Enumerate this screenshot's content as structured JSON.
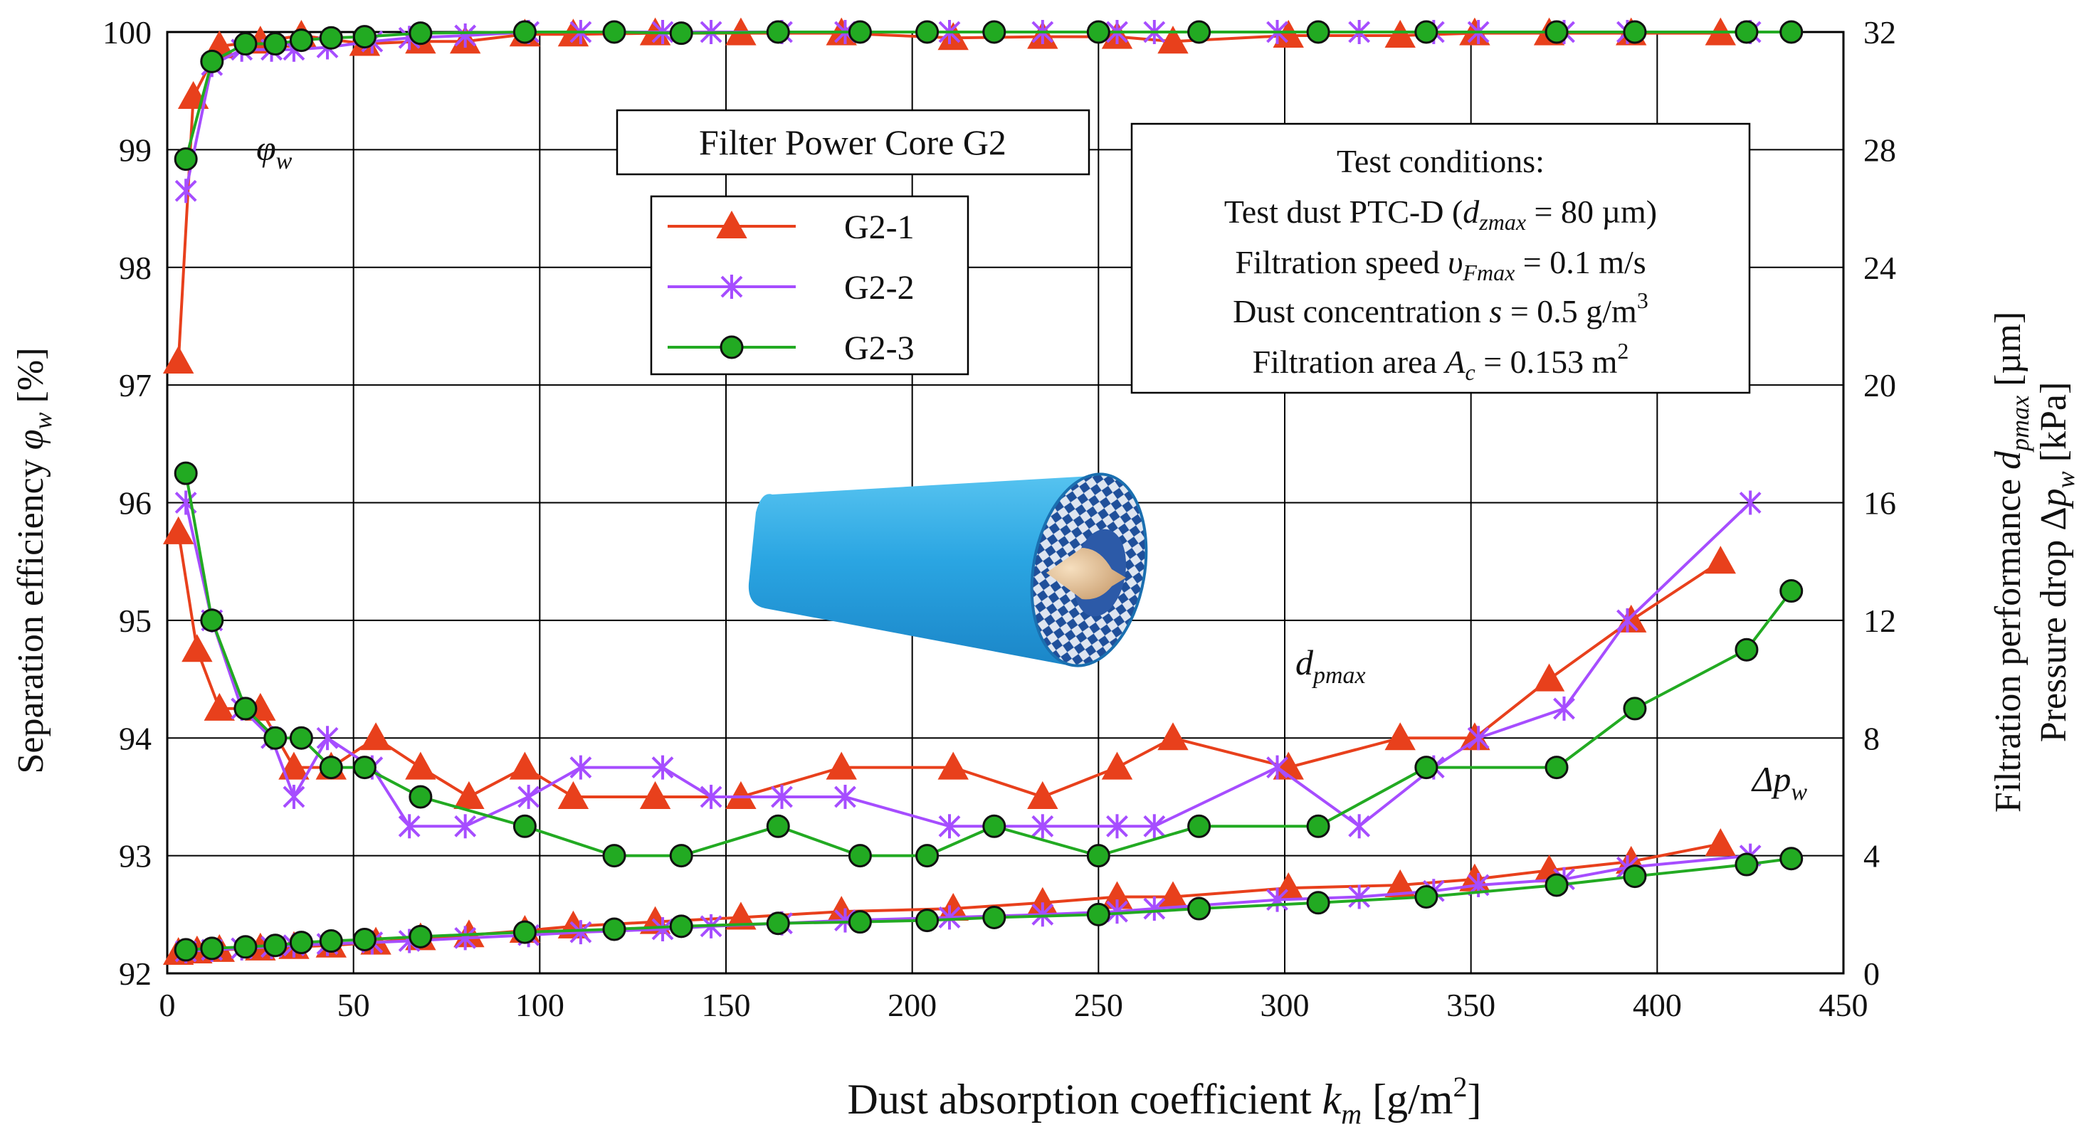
{
  "chart_data": {
    "type": "line",
    "title": "Filter Power Core G2",
    "xlabel": "Dust absorption coefficient",
    "xlabel_var": "k",
    "xlabel_sub": "m",
    "xlabel_unit_open": " [g/m",
    "xlabel_unit_sup": "2",
    "xlabel_unit_close": "]",
    "ylabel_left": "Separation efficiency",
    "ylabel_left_var": "φ",
    "ylabel_left_sub": "w",
    "ylabel_left_unit": " [%]",
    "ylabel_right_1": "Filtration performance",
    "ylabel_right_1_var": "d",
    "ylabel_right_1_sub": "pmax",
    "ylabel_right_1_unit": " [µm]",
    "ylabel_right_2": "Pressure drop Δ",
    "ylabel_right_2_var": "p",
    "ylabel_right_2_sub": "w",
    "ylabel_right_2_unit": " [kPa]",
    "xlim": [
      0,
      450
    ],
    "ylim_left": [
      92,
      100
    ],
    "ylim_right": [
      0,
      32
    ],
    "x_ticks": [
      "0",
      "50",
      "100",
      "150",
      "200",
      "250",
      "300",
      "350",
      "400",
      "450"
    ],
    "y_left_ticks": [
      "92",
      "93",
      "94",
      "95",
      "96",
      "97",
      "98",
      "99",
      "100"
    ],
    "y_right_ticks": [
      "0",
      "4",
      "8",
      "12",
      "16",
      "20",
      "24",
      "28",
      "32"
    ],
    "grid": true,
    "annotations": {
      "phi": {
        "main": "φ",
        "sub": "w"
      },
      "dpmax": {
        "main": "d",
        "sub": "pmax"
      },
      "dp": {
        "main": "Δp",
        "sub": "w"
      }
    },
    "legend": [
      {
        "name": "G2-1",
        "color": "#e8401c",
        "marker": "triangle"
      },
      {
        "name": "G2-2",
        "color": "#a64dff",
        "marker": "cross"
      },
      {
        "name": "G2-3",
        "color": "#22aa22",
        "marker": "circle"
      }
    ],
    "test_conditions": {
      "heading": "Test conditions:",
      "dust_prefix": "Test dust PTC-D (",
      "dust_var": "d",
      "dust_sub": "zmax",
      "dust_suffix": " = 80 µm)",
      "speed_prefix": "Filtration speed ",
      "speed_var": "υ",
      "speed_sub": "Fmax",
      "speed_suffix": " = 0.1 m/s",
      "conc_prefix": "Dust concentration ",
      "conc_var": "s",
      "conc_suffix": " = 0.5 g/m",
      "conc_sup": "3",
      "area_prefix": "Filtration area ",
      "area_var": "A",
      "area_sub": "c",
      "area_suffix": " = 0.153 m",
      "area_sup": "2"
    },
    "series": [
      {
        "name": "G2-1",
        "quantity": "efficiency",
        "axis": "left",
        "color": "#e8401c",
        "marker": "triangle",
        "x": [
          3,
          7,
          14,
          25,
          36,
          53,
          68,
          80,
          96,
          109,
          131,
          154,
          181,
          211,
          235,
          255,
          270,
          301,
          331,
          351,
          371,
          393,
          417
        ],
        "y": [
          97.2,
          99.45,
          99.88,
          99.92,
          99.97,
          99.9,
          99.92,
          99.92,
          99.98,
          99.98,
          99.99,
          99.99,
          99.99,
          99.95,
          99.96,
          99.96,
          99.92,
          99.97,
          99.97,
          99.99,
          99.99,
          99.99,
          99.99
        ]
      },
      {
        "name": "G2-2",
        "quantity": "efficiency",
        "axis": "left",
        "color": "#a64dff",
        "marker": "cross",
        "x": [
          5,
          12,
          20,
          28,
          34,
          43,
          55,
          65,
          80,
          97,
          111,
          133,
          146,
          165,
          182,
          210,
          235,
          255,
          265,
          298,
          320,
          340,
          352,
          375,
          392,
          425
        ],
        "y": [
          98.65,
          99.72,
          99.85,
          99.85,
          99.85,
          99.87,
          99.92,
          99.95,
          99.97,
          100,
          100,
          100,
          100,
          100,
          100,
          100,
          100,
          100,
          100,
          100,
          100,
          100,
          100,
          100,
          100,
          100
        ]
      },
      {
        "name": "G2-3",
        "quantity": "efficiency",
        "axis": "left",
        "color": "#22aa22",
        "marker": "circle",
        "x": [
          5,
          12,
          21,
          29,
          36,
          44,
          53,
          68,
          96,
          120,
          138,
          164,
          186,
          204,
          222,
          250,
          277,
          309,
          338,
          373,
          394,
          424,
          436
        ],
        "y": [
          98.92,
          99.75,
          99.9,
          99.9,
          99.93,
          99.95,
          99.96,
          99.99,
          100,
          100,
          99.99,
          100,
          100,
          100,
          100,
          100,
          100,
          100,
          100,
          100,
          100,
          100,
          100
        ]
      },
      {
        "name": "G2-1",
        "quantity": "dpmax",
        "axis": "right",
        "color": "#e8401c",
        "marker": "triangle",
        "x": [
          3,
          8,
          14,
          25,
          34,
          44,
          56,
          68,
          81,
          96,
          109,
          131,
          154,
          181,
          211,
          235,
          255,
          270,
          301,
          331,
          351,
          371,
          393,
          417
        ],
        "y": [
          15,
          11,
          9,
          9,
          7,
          7,
          8,
          7,
          6,
          7,
          6,
          6,
          6,
          7,
          7,
          6,
          7,
          8,
          7,
          8,
          8,
          10,
          12,
          14
        ]
      },
      {
        "name": "G2-2",
        "quantity": "dpmax",
        "axis": "right",
        "color": "#a64dff",
        "marker": "cross",
        "x": [
          5,
          12,
          20,
          28,
          34,
          43,
          55,
          65,
          80,
          97,
          111,
          133,
          146,
          165,
          182,
          210,
          235,
          255,
          265,
          298,
          320,
          340,
          352,
          375,
          392,
          425
        ],
        "y": [
          16,
          12,
          9,
          8,
          6,
          8,
          7,
          5,
          5,
          6,
          7,
          7,
          6,
          6,
          6,
          5,
          5,
          5,
          5,
          7,
          5,
          7,
          8,
          9,
          12,
          16
        ]
      },
      {
        "name": "G2-3",
        "quantity": "dpmax",
        "axis": "right",
        "color": "#22aa22",
        "marker": "circle",
        "x": [
          5,
          12,
          21,
          29,
          36,
          44,
          53,
          68,
          96,
          120,
          138,
          164,
          186,
          204,
          222,
          250,
          277,
          309,
          338,
          373,
          394,
          424,
          436
        ],
        "y": [
          17,
          12,
          9,
          8,
          8,
          7,
          7,
          6,
          5,
          4,
          4,
          5,
          4,
          4,
          5,
          4,
          5,
          5,
          7,
          7,
          9,
          11,
          13
        ]
      },
      {
        "name": "G2-1",
        "quantity": "pressure_drop",
        "axis": "right",
        "color": "#e8401c",
        "marker": "triangle",
        "x": [
          3,
          8,
          14,
          25,
          34,
          44,
          56,
          68,
          81,
          96,
          109,
          131,
          154,
          181,
          211,
          235,
          255,
          270,
          301,
          331,
          351,
          371,
          393,
          417
        ],
        "y": [
          0.7,
          0.75,
          0.8,
          0.85,
          0.9,
          0.95,
          1.05,
          1.2,
          1.3,
          1.45,
          1.6,
          1.75,
          1.9,
          2.1,
          2.2,
          2.4,
          2.6,
          2.6,
          2.9,
          3.0,
          3.2,
          3.5,
          3.8,
          4.4
        ]
      },
      {
        "name": "G2-2",
        "quantity": "pressure_drop",
        "axis": "right",
        "color": "#a64dff",
        "marker": "cross",
        "x": [
          5,
          12,
          20,
          28,
          34,
          43,
          55,
          65,
          80,
          97,
          111,
          133,
          146,
          165,
          182,
          210,
          235,
          255,
          265,
          298,
          320,
          340,
          352,
          375,
          392,
          425
        ],
        "y": [
          0.75,
          0.8,
          0.85,
          0.9,
          0.95,
          1.0,
          1.05,
          1.1,
          1.2,
          1.3,
          1.4,
          1.5,
          1.6,
          1.7,
          1.8,
          1.9,
          2.0,
          2.1,
          2.2,
          2.5,
          2.6,
          2.8,
          3.0,
          3.2,
          3.6,
          4.0
        ]
      },
      {
        "name": "G2-3",
        "quantity": "pressure_drop",
        "axis": "right",
        "color": "#22aa22",
        "marker": "circle",
        "x": [
          5,
          12,
          21,
          29,
          36,
          44,
          53,
          68,
          96,
          120,
          138,
          164,
          186,
          204,
          222,
          250,
          277,
          309,
          338,
          373,
          394,
          424,
          436
        ],
        "y": [
          0.8,
          0.85,
          0.9,
          0.95,
          1.05,
          1.1,
          1.15,
          1.25,
          1.4,
          1.5,
          1.6,
          1.7,
          1.75,
          1.8,
          1.9,
          2.0,
          2.2,
          2.4,
          2.6,
          3.0,
          3.3,
          3.7,
          3.9
        ]
      }
    ]
  }
}
